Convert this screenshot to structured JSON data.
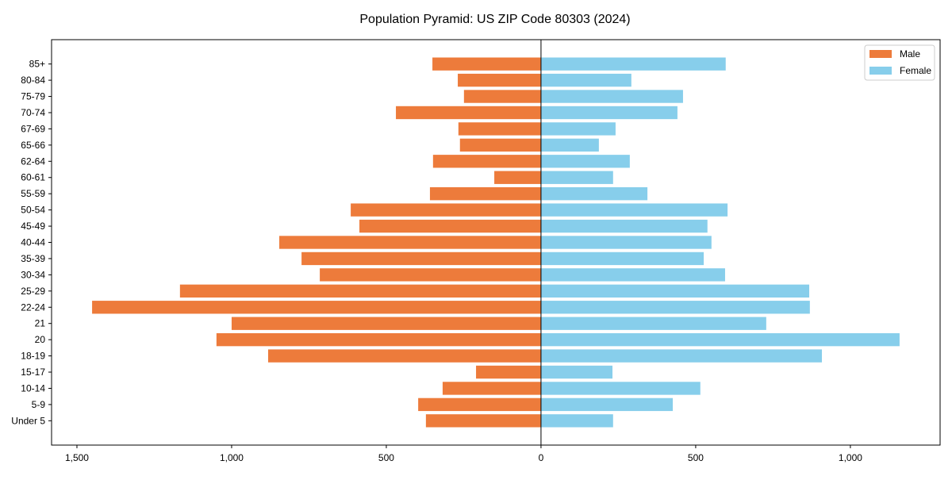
{
  "chart_data": {
    "type": "bar",
    "orientation": "horizontal",
    "title": "Population Pyramid: US ZIP Code 80303 (2024)",
    "xlabel": "",
    "ylabel": "",
    "xlim": [
      -1582,
      1290
    ],
    "xticks": [
      -1500,
      -1000,
      -500,
      0,
      500,
      1000
    ],
    "xtick_labels": [
      "1,500",
      "1,000",
      "500",
      "0",
      "500",
      "1,000"
    ],
    "grid": false,
    "legend_position": "top-right",
    "categories": [
      "Under 5",
      "5-9",
      "10-14",
      "15-17",
      "18-19",
      "20",
      "21",
      "22-24",
      "25-29",
      "30-34",
      "35-39",
      "40-44",
      "45-49",
      "50-54",
      "55-59",
      "60-61",
      "62-64",
      "65-66",
      "67-69",
      "70-74",
      "75-79",
      "80-84",
      "85+"
    ],
    "series": [
      {
        "name": "Male",
        "color": "#ED7B3B",
        "values": [
          372,
          397,
          318,
          210,
          882,
          1049,
          1000,
          1451,
          1167,
          715,
          774,
          846,
          587,
          615,
          359,
          151,
          349,
          262,
          267,
          469,
          249,
          269,
          351
        ]
      },
      {
        "name": "Female",
        "color": "#87CEEB",
        "values": [
          233,
          426,
          515,
          231,
          908,
          1159,
          728,
          869,
          867,
          595,
          526,
          551,
          538,
          603,
          344,
          233,
          287,
          187,
          241,
          441,
          459,
          292,
          597
        ]
      }
    ]
  }
}
